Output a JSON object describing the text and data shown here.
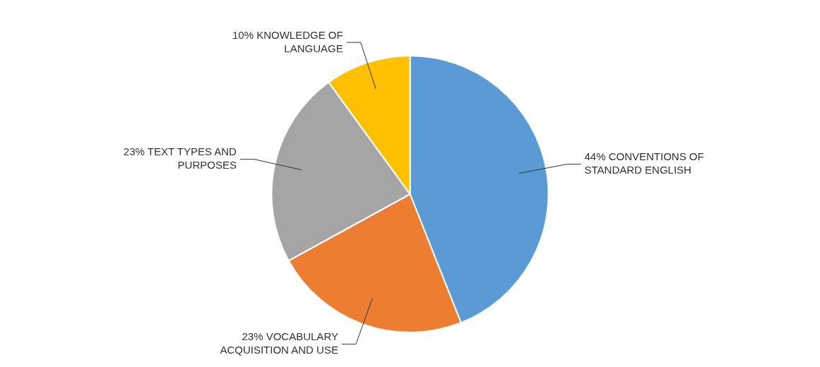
{
  "chart_data": {
    "type": "pie",
    "categories": [
      "CONVENTIONS OF STANDARD ENGLISH",
      "VOCABULARY ACQUISITION AND USE",
      "TEXT TYPES AND PURPOSES",
      "KNOWLEDGE OF LANGUAGE"
    ],
    "values": [
      44,
      23,
      23,
      10
    ],
    "value_labels": [
      "44%",
      "23%",
      "23%",
      "10%"
    ],
    "colors": [
      "#5b9bd5",
      "#ed7d31",
      "#a5a5a5",
      "#ffc000"
    ],
    "legend": false
  }
}
